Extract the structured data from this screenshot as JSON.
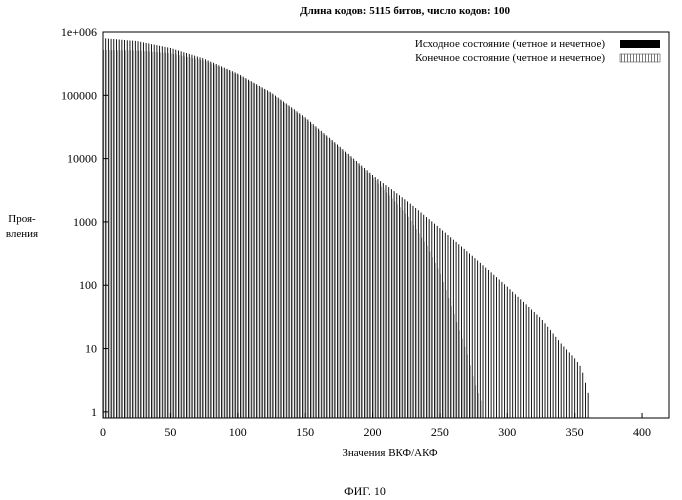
{
  "chart_data": {
    "type": "bar",
    "title": "Длина кодов: 5115 битов, число кодов: 100",
    "xlabel": "Значения ВКФ/АКФ",
    "ylabel_lines": [
      "Проя-",
      "вления"
    ],
    "y_scale": "log",
    "xlim": [
      0,
      420
    ],
    "ylim": [
      0.8,
      1000000
    ],
    "x_ticks": [
      0,
      50,
      100,
      150,
      200,
      250,
      300,
      350,
      400
    ],
    "y_ticks": [
      {
        "value": 1,
        "label": "1"
      },
      {
        "value": 10,
        "label": "10"
      },
      {
        "value": 100,
        "label": "100"
      },
      {
        "value": 1000,
        "label": "1000"
      },
      {
        "value": 10000,
        "label": "10000"
      },
      {
        "value": 100000,
        "label": "100000"
      },
      {
        "value": 1000000,
        "label": "1e+006"
      }
    ],
    "legend_position": "top-right",
    "series": [
      {
        "name": "Исходное состояние (четное и нечетное)",
        "color": "#000000",
        "points": [
          [
            0,
            800000
          ],
          [
            25,
            720000
          ],
          [
            50,
            560000
          ],
          [
            75,
            380000
          ],
          [
            100,
            220000
          ],
          [
            125,
            110000
          ],
          [
            150,
            45000
          ],
          [
            175,
            16000
          ],
          [
            200,
            5500
          ],
          [
            225,
            2200
          ],
          [
            250,
            800
          ],
          [
            275,
            280
          ],
          [
            300,
            95
          ],
          [
            325,
            30
          ],
          [
            340,
            12
          ],
          [
            350,
            7
          ],
          [
            355,
            5
          ],
          [
            360,
            2
          ]
        ]
      },
      {
        "name": "Конечное состояние (четное и нечетное)",
        "color": "#888888",
        "points": [
          [
            0,
            520000
          ],
          [
            25,
            510000
          ],
          [
            50,
            460000
          ],
          [
            75,
            350000
          ],
          [
            100,
            210000
          ],
          [
            125,
            105000
          ],
          [
            150,
            42000
          ],
          [
            175,
            15000
          ],
          [
            200,
            5000
          ],
          [
            225,
            1300
          ],
          [
            240,
            420
          ],
          [
            250,
            150
          ],
          [
            260,
            35
          ],
          [
            270,
            8
          ],
          [
            275,
            3
          ],
          [
            280,
            1.5
          ]
        ]
      }
    ]
  },
  "caption": "ФИГ. 10"
}
